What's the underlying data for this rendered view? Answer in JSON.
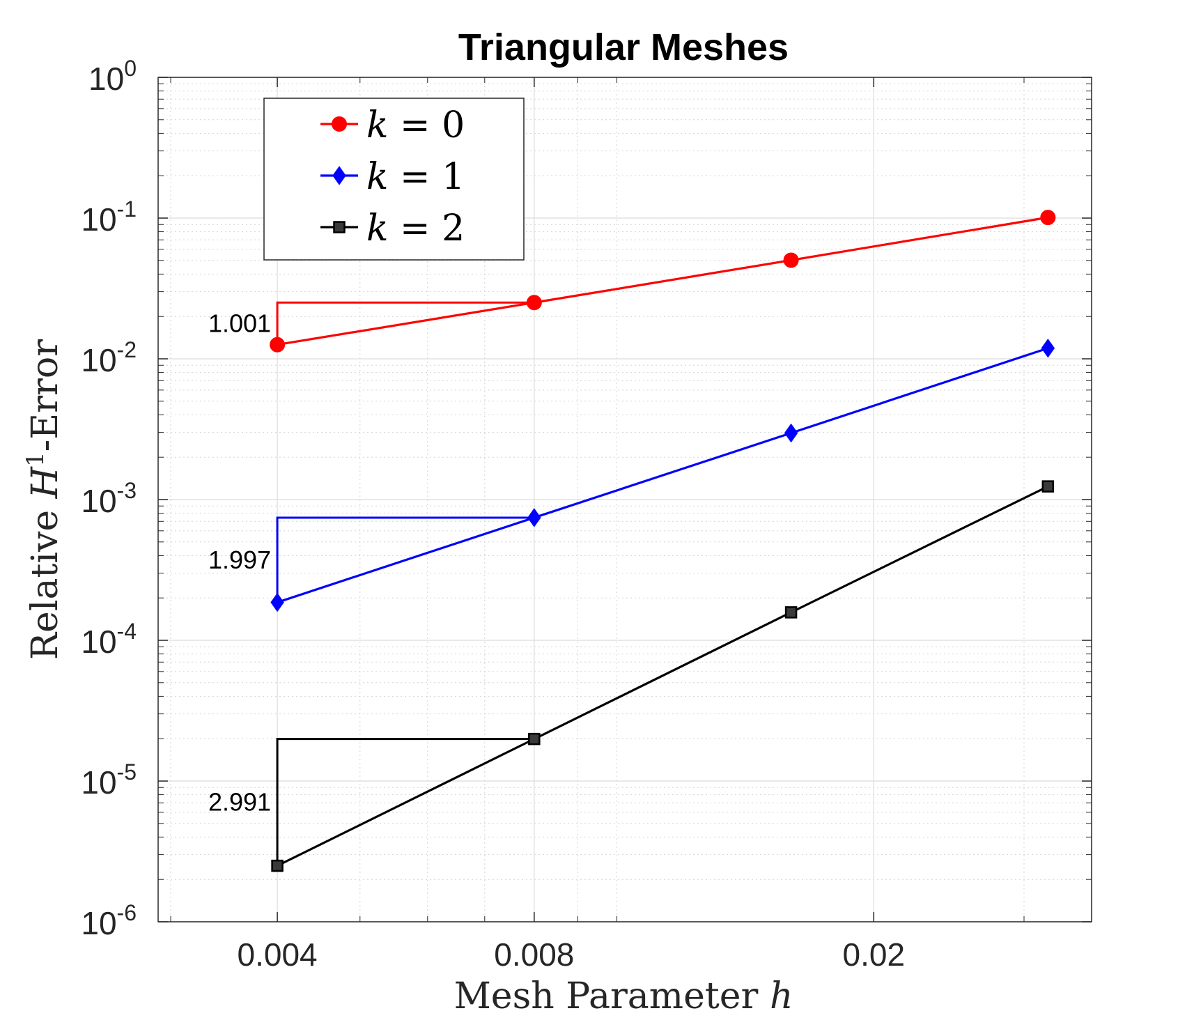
{
  "chart_data": {
    "type": "line",
    "title": "Triangular Meshes",
    "xlabel": {
      "text": "Mesh Parameter ",
      "var": "h"
    },
    "ylabel": {
      "text": "Relative ",
      "var": "H",
      "sup": "1",
      "suffix": "-Error"
    },
    "x_scale": "log",
    "y_scale": "log",
    "xlim": [
      0.0029,
      0.036
    ],
    "ylim": [
      1e-06,
      1
    ],
    "grid": true,
    "minor_grid": true,
    "legend_position": "top-left",
    "xticks": [
      {
        "value": 0.004,
        "label": "0.004"
      },
      {
        "value": 0.008,
        "label": "0.008"
      },
      {
        "value": 0.02,
        "label": "0.02"
      }
    ],
    "yticks": [
      {
        "value": 1,
        "base": "10",
        "exp": "0"
      },
      {
        "value": 0.1,
        "base": "10",
        "exp": "-1"
      },
      {
        "value": 0.01,
        "base": "10",
        "exp": "-2"
      },
      {
        "value": 0.001,
        "base": "10",
        "exp": "-3"
      },
      {
        "value": 0.0001,
        "base": "10",
        "exp": "-4"
      },
      {
        "value": 1e-05,
        "base": "10",
        "exp": "-5"
      },
      {
        "value": 1e-06,
        "base": "10",
        "exp": "-6"
      }
    ],
    "x": [
      0.032,
      0.016,
      0.008,
      0.004
    ],
    "series": [
      {
        "name": "k = 0",
        "legend_var": "k",
        "legend_eq": " = 0",
        "color": "#ff0000",
        "marker": "circle",
        "values": [
          0.101,
          0.0502,
          0.0251,
          0.0126
        ]
      },
      {
        "name": "k = 1",
        "legend_var": "k",
        "legend_eq": " = 1",
        "color": "#0000ff",
        "marker": "diamond",
        "values": [
          0.0119,
          0.00297,
          0.000744,
          0.000186
        ]
      },
      {
        "name": "k = 2",
        "legend_var": "k",
        "legend_eq": " = 2",
        "color": "#000000",
        "marker": "square",
        "values": [
          0.00124,
          0.000158,
          1.99e-05,
          2.5e-06
        ]
      }
    ],
    "slope_triangles": [
      {
        "label": "1.001",
        "color": "#ff0000",
        "x_from": 0.004,
        "x_to": 0.008,
        "y_low": 0.0126,
        "y_high": 0.0251
      },
      {
        "label": "1.997",
        "color": "#0000ff",
        "x_from": 0.004,
        "x_to": 0.008,
        "y_low": 0.000186,
        "y_high": 0.000744
      },
      {
        "label": "2.991",
        "color": "#000000",
        "x_from": 0.004,
        "x_to": 0.008,
        "y_low": 2.5e-06,
        "y_high": 1.99e-05
      }
    ]
  }
}
